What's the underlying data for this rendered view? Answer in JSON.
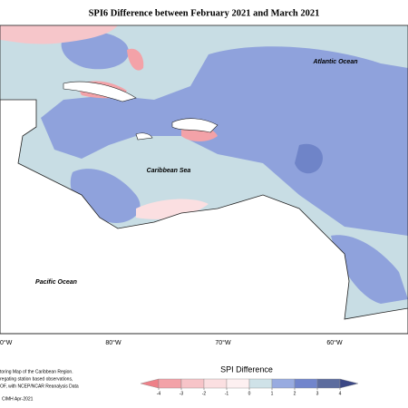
{
  "header": {
    "title": "SPI6 Difference between February 2021 and March 2021"
  },
  "map": {
    "labels": [
      "Atlantic Ocean",
      "Caribbean Sea",
      "Pacific Ocean"
    ],
    "longitudes": [
      "0°W",
      "80°W",
      "70°W",
      "60°W"
    ]
  },
  "notes": [
    "toring Map of the Caribbean Region.",
    "regating station based observations,",
    "OF, with NCEP/NCAR Reanalysis Data"
  ],
  "credit": "CIMH Apr-2021",
  "legend": {
    "title": "SPI Difference",
    "ticks": [
      -4,
      -3,
      -2,
      -1,
      0,
      1,
      2,
      3,
      4
    ],
    "colors": [
      "#ee8088",
      "#f3a2a8",
      "#f7c4c8",
      "#fbdfe1",
      "#fdf0f1",
      "#cfe2e8",
      "#98abe0",
      "#7185cc",
      "#5c6c9e",
      "#3b4785"
    ]
  }
}
